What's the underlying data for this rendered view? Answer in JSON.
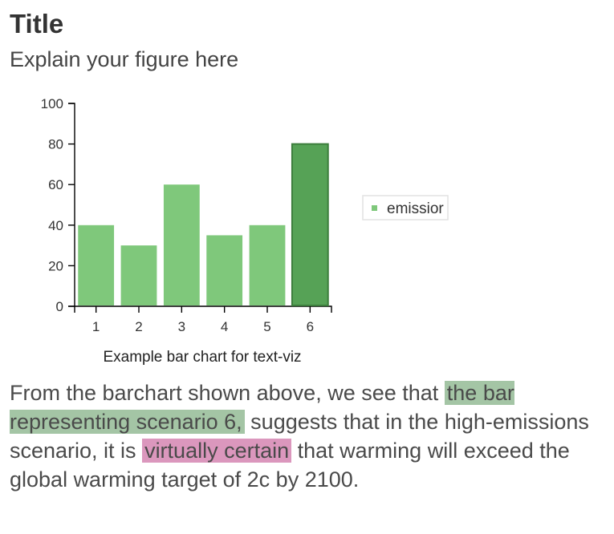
{
  "header": {
    "title": "Title",
    "subtitle": "Explain your figure here"
  },
  "chart_data": {
    "type": "bar",
    "categories": [
      "1",
      "2",
      "3",
      "4",
      "5",
      "6"
    ],
    "values": [
      40,
      30,
      60,
      35,
      40,
      80
    ],
    "highlight_index": 5,
    "xlabel": "Example bar chart for text-viz",
    "ylabel": "",
    "ylim": [
      0,
      100
    ],
    "yticks": [
      0,
      20,
      40,
      60,
      80,
      100
    ],
    "legend": {
      "label": "emissior",
      "placement": "right"
    },
    "bar_color": "#7fc87b",
    "highlight_color": "#56a256",
    "highlight_stroke": "#3c7d3c",
    "grid": false
  },
  "text": {
    "part1": "From the barchart shown above, we see that ",
    "highlight1": "the bar representing scenario 6,",
    "part2": " suggests that in the high-emissions scenario, it is ",
    "highlight2": "virtually certain",
    "part3": " that warming will exceed the global warming target of 2c by 2100.",
    "highlight1_color": "#a4c5a5",
    "highlight2_color": "#db97bd"
  }
}
